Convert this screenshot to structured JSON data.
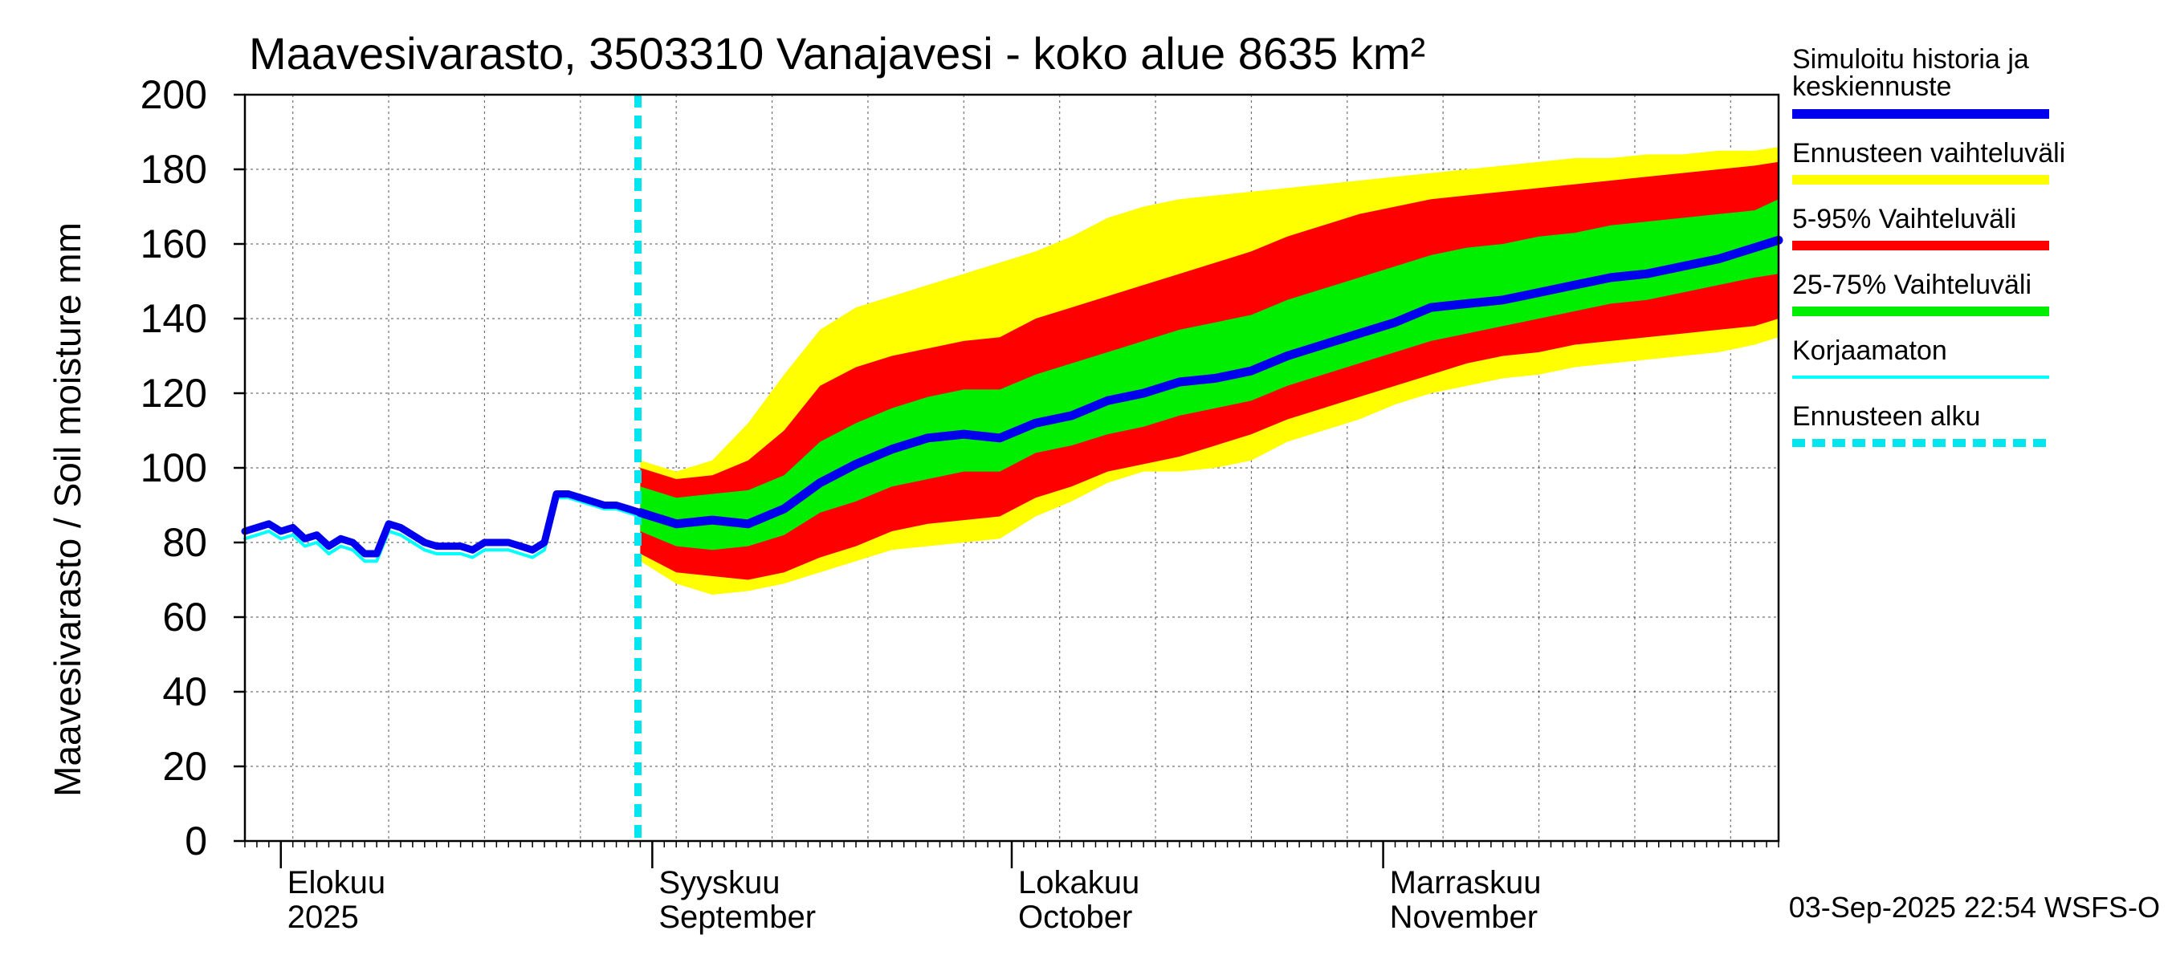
{
  "chart_data": {
    "type": "area",
    "title": "Maavesivarasto, 3503310 Vanajavesi - koko alue 8635 km²",
    "ylabel": "Maavesivarasto / Soil moisture   mm",
    "ylim": [
      0,
      200
    ],
    "yticks": [
      0,
      20,
      40,
      60,
      80,
      100,
      120,
      140,
      160,
      180,
      200
    ],
    "xlim": [
      "2025-07-29",
      "2025-12-04"
    ],
    "grid": true,
    "month_labels": [
      {
        "date": "2025-08-01",
        "line1": "Elokuu",
        "line2": "2025"
      },
      {
        "date": "2025-09-01",
        "line1": "Syyskuu",
        "line2": "September"
      },
      {
        "date": "2025-10-01",
        "line1": "Lokakuu",
        "line2": "October"
      },
      {
        "date": "2025-11-01",
        "line1": "Marraskuu",
        "line2": "November"
      }
    ],
    "forecast_start": "2025-08-30",
    "legend_position": "right",
    "legend": [
      {
        "label_line1": "Simuloitu historia ja",
        "label_line2": "keskiennuste",
        "color": "#0000ee",
        "style": "thick"
      },
      {
        "label_line1": "Ennusteen vaihteluväli",
        "label_line2": "",
        "color": "#ffff00",
        "style": "thick"
      },
      {
        "label_line1": "5-95% Vaihteluväli",
        "label_line2": "",
        "color": "#ff0000",
        "style": "thick"
      },
      {
        "label_line1": "25-75% Vaihteluväli",
        "label_line2": "",
        "color": "#00ee00",
        "style": "thick"
      },
      {
        "label_line1": "Korjaamaton",
        "label_line2": "",
        "color": "#00ffff",
        "style": "thin"
      },
      {
        "label_line1": "Ennusteen alku",
        "label_line2": "",
        "color": "#00e5ee",
        "style": "dashed"
      }
    ],
    "footer": "03-Sep-2025 22:54 WSFS-O",
    "history": {
      "dates": [
        "2025-07-29",
        "2025-07-30",
        "2025-07-31",
        "2025-08-01",
        "2025-08-02",
        "2025-08-03",
        "2025-08-04",
        "2025-08-05",
        "2025-08-06",
        "2025-08-07",
        "2025-08-08",
        "2025-08-09",
        "2025-08-10",
        "2025-08-11",
        "2025-08-12",
        "2025-08-13",
        "2025-08-14",
        "2025-08-15",
        "2025-08-16",
        "2025-08-17",
        "2025-08-18",
        "2025-08-19",
        "2025-08-20",
        "2025-08-21",
        "2025-08-22",
        "2025-08-23",
        "2025-08-24",
        "2025-08-25",
        "2025-08-26",
        "2025-08-27",
        "2025-08-28",
        "2025-08-29",
        "2025-08-30",
        "2025-08-31"
      ],
      "simulated": [
        83,
        84,
        85,
        83,
        84,
        81,
        82,
        79,
        81,
        80,
        77,
        77,
        85,
        84,
        82,
        80,
        79,
        79,
        79,
        78,
        80,
        80,
        80,
        79,
        78,
        80,
        93,
        93,
        92,
        91,
        90,
        90,
        89,
        88
      ],
      "uncorrected": [
        81,
        82,
        83,
        81,
        82,
        79,
        80,
        77,
        79,
        78,
        75,
        75,
        83,
        82,
        80,
        78,
        77,
        77,
        77,
        76,
        78,
        78,
        78,
        77,
        76,
        78,
        92,
        92,
        91,
        90,
        89,
        89,
        88,
        87
      ]
    },
    "forecast": {
      "dates": [
        "2025-08-31",
        "2025-09-03",
        "2025-09-06",
        "2025-09-09",
        "2025-09-12",
        "2025-09-15",
        "2025-09-18",
        "2025-09-21",
        "2025-09-24",
        "2025-09-27",
        "2025-09-30",
        "2025-10-03",
        "2025-10-06",
        "2025-10-09",
        "2025-10-12",
        "2025-10-15",
        "2025-10-18",
        "2025-10-21",
        "2025-10-24",
        "2025-10-27",
        "2025-10-30",
        "2025-11-02",
        "2025-11-05",
        "2025-11-08",
        "2025-11-11",
        "2025-11-14",
        "2025-11-17",
        "2025-11-20",
        "2025-11-23",
        "2025-11-26",
        "2025-11-29",
        "2025-12-02",
        "2025-12-04"
      ],
      "mean": [
        88,
        85,
        86,
        85,
        89,
        96,
        101,
        105,
        108,
        109,
        108,
        112,
        114,
        118,
        120,
        123,
        124,
        126,
        130,
        133,
        136,
        139,
        143,
        144,
        145,
        147,
        149,
        151,
        152,
        154,
        156,
        159,
        161
      ],
      "p25": [
        83,
        79,
        78,
        79,
        82,
        88,
        91,
        95,
        97,
        99,
        99,
        104,
        106,
        109,
        111,
        114,
        116,
        118,
        122,
        125,
        128,
        131,
        134,
        136,
        138,
        140,
        142,
        144,
        145,
        147,
        149,
        151,
        152
      ],
      "p75": [
        95,
        92,
        93,
        94,
        98,
        107,
        112,
        116,
        119,
        121,
        121,
        125,
        128,
        131,
        134,
        137,
        139,
        141,
        145,
        148,
        151,
        154,
        157,
        159,
        160,
        162,
        163,
        165,
        166,
        167,
        168,
        169,
        172
      ],
      "p5": [
        77,
        72,
        71,
        70,
        72,
        76,
        79,
        83,
        85,
        86,
        87,
        92,
        95,
        99,
        101,
        103,
        106,
        109,
        113,
        116,
        119,
        122,
        125,
        128,
        130,
        131,
        133,
        134,
        135,
        136,
        137,
        138,
        140
      ],
      "p95": [
        100,
        97,
        98,
        102,
        110,
        122,
        127,
        130,
        132,
        134,
        135,
        140,
        143,
        146,
        149,
        152,
        155,
        158,
        162,
        165,
        168,
        170,
        172,
        173,
        174,
        175,
        176,
        177,
        178,
        179,
        180,
        181,
        182
      ],
      "min": [
        75,
        69,
        66,
        67,
        69,
        72,
        75,
        78,
        79,
        80,
        81,
        87,
        91,
        96,
        99,
        99,
        100,
        102,
        107,
        110,
        113,
        117,
        120,
        122,
        124,
        125,
        127,
        128,
        129,
        130,
        131,
        133,
        135
      ],
      "max": [
        102,
        99,
        102,
        112,
        125,
        137,
        143,
        146,
        149,
        152,
        155,
        158,
        162,
        167,
        170,
        172,
        173,
        174,
        175,
        176,
        177,
        178,
        179,
        180,
        181,
        182,
        183,
        183,
        184,
        184,
        185,
        185,
        186
      ]
    }
  }
}
